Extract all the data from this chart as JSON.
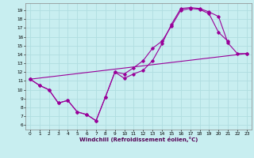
{
  "xlabel": "Windchill (Refroidissement éolien,°C)",
  "bg_color": "#c8eef0",
  "grid_color": "#b0dde0",
  "line_color": "#990099",
  "xlim": [
    -0.5,
    23.5
  ],
  "ylim": [
    5.5,
    19.8
  ],
  "xticks": [
    0,
    1,
    2,
    3,
    4,
    5,
    6,
    7,
    8,
    9,
    10,
    11,
    12,
    13,
    14,
    15,
    16,
    17,
    18,
    19,
    20,
    21,
    22,
    23
  ],
  "yticks": [
    6,
    7,
    8,
    9,
    10,
    11,
    12,
    13,
    14,
    15,
    16,
    17,
    18,
    19
  ],
  "line1_x": [
    0,
    1,
    2,
    3,
    4,
    5,
    6,
    7,
    8,
    9,
    10,
    11,
    12,
    13,
    14,
    15,
    16,
    17,
    18,
    19,
    20,
    21,
    22,
    23
  ],
  "line1_y": [
    11.2,
    10.5,
    10.0,
    8.5,
    8.8,
    7.5,
    7.2,
    6.5,
    9.2,
    12.0,
    11.3,
    11.8,
    12.2,
    13.3,
    15.2,
    17.4,
    19.2,
    19.3,
    19.2,
    18.8,
    18.3,
    15.3,
    14.1,
    14.1
  ],
  "line2_x": [
    0,
    1,
    2,
    3,
    4,
    5,
    6,
    7,
    8,
    9,
    10,
    11,
    12,
    13,
    14,
    15,
    16,
    17,
    18,
    19,
    20,
    21
  ],
  "line2_y": [
    11.2,
    10.5,
    10.0,
    8.5,
    8.8,
    7.5,
    7.2,
    6.5,
    9.2,
    12.0,
    11.8,
    12.5,
    13.3,
    14.7,
    15.5,
    17.2,
    19.0,
    19.2,
    19.1,
    18.6,
    16.5,
    15.5
  ],
  "line3_x": [
    0,
    23
  ],
  "line3_y": [
    11.2,
    14.1
  ]
}
